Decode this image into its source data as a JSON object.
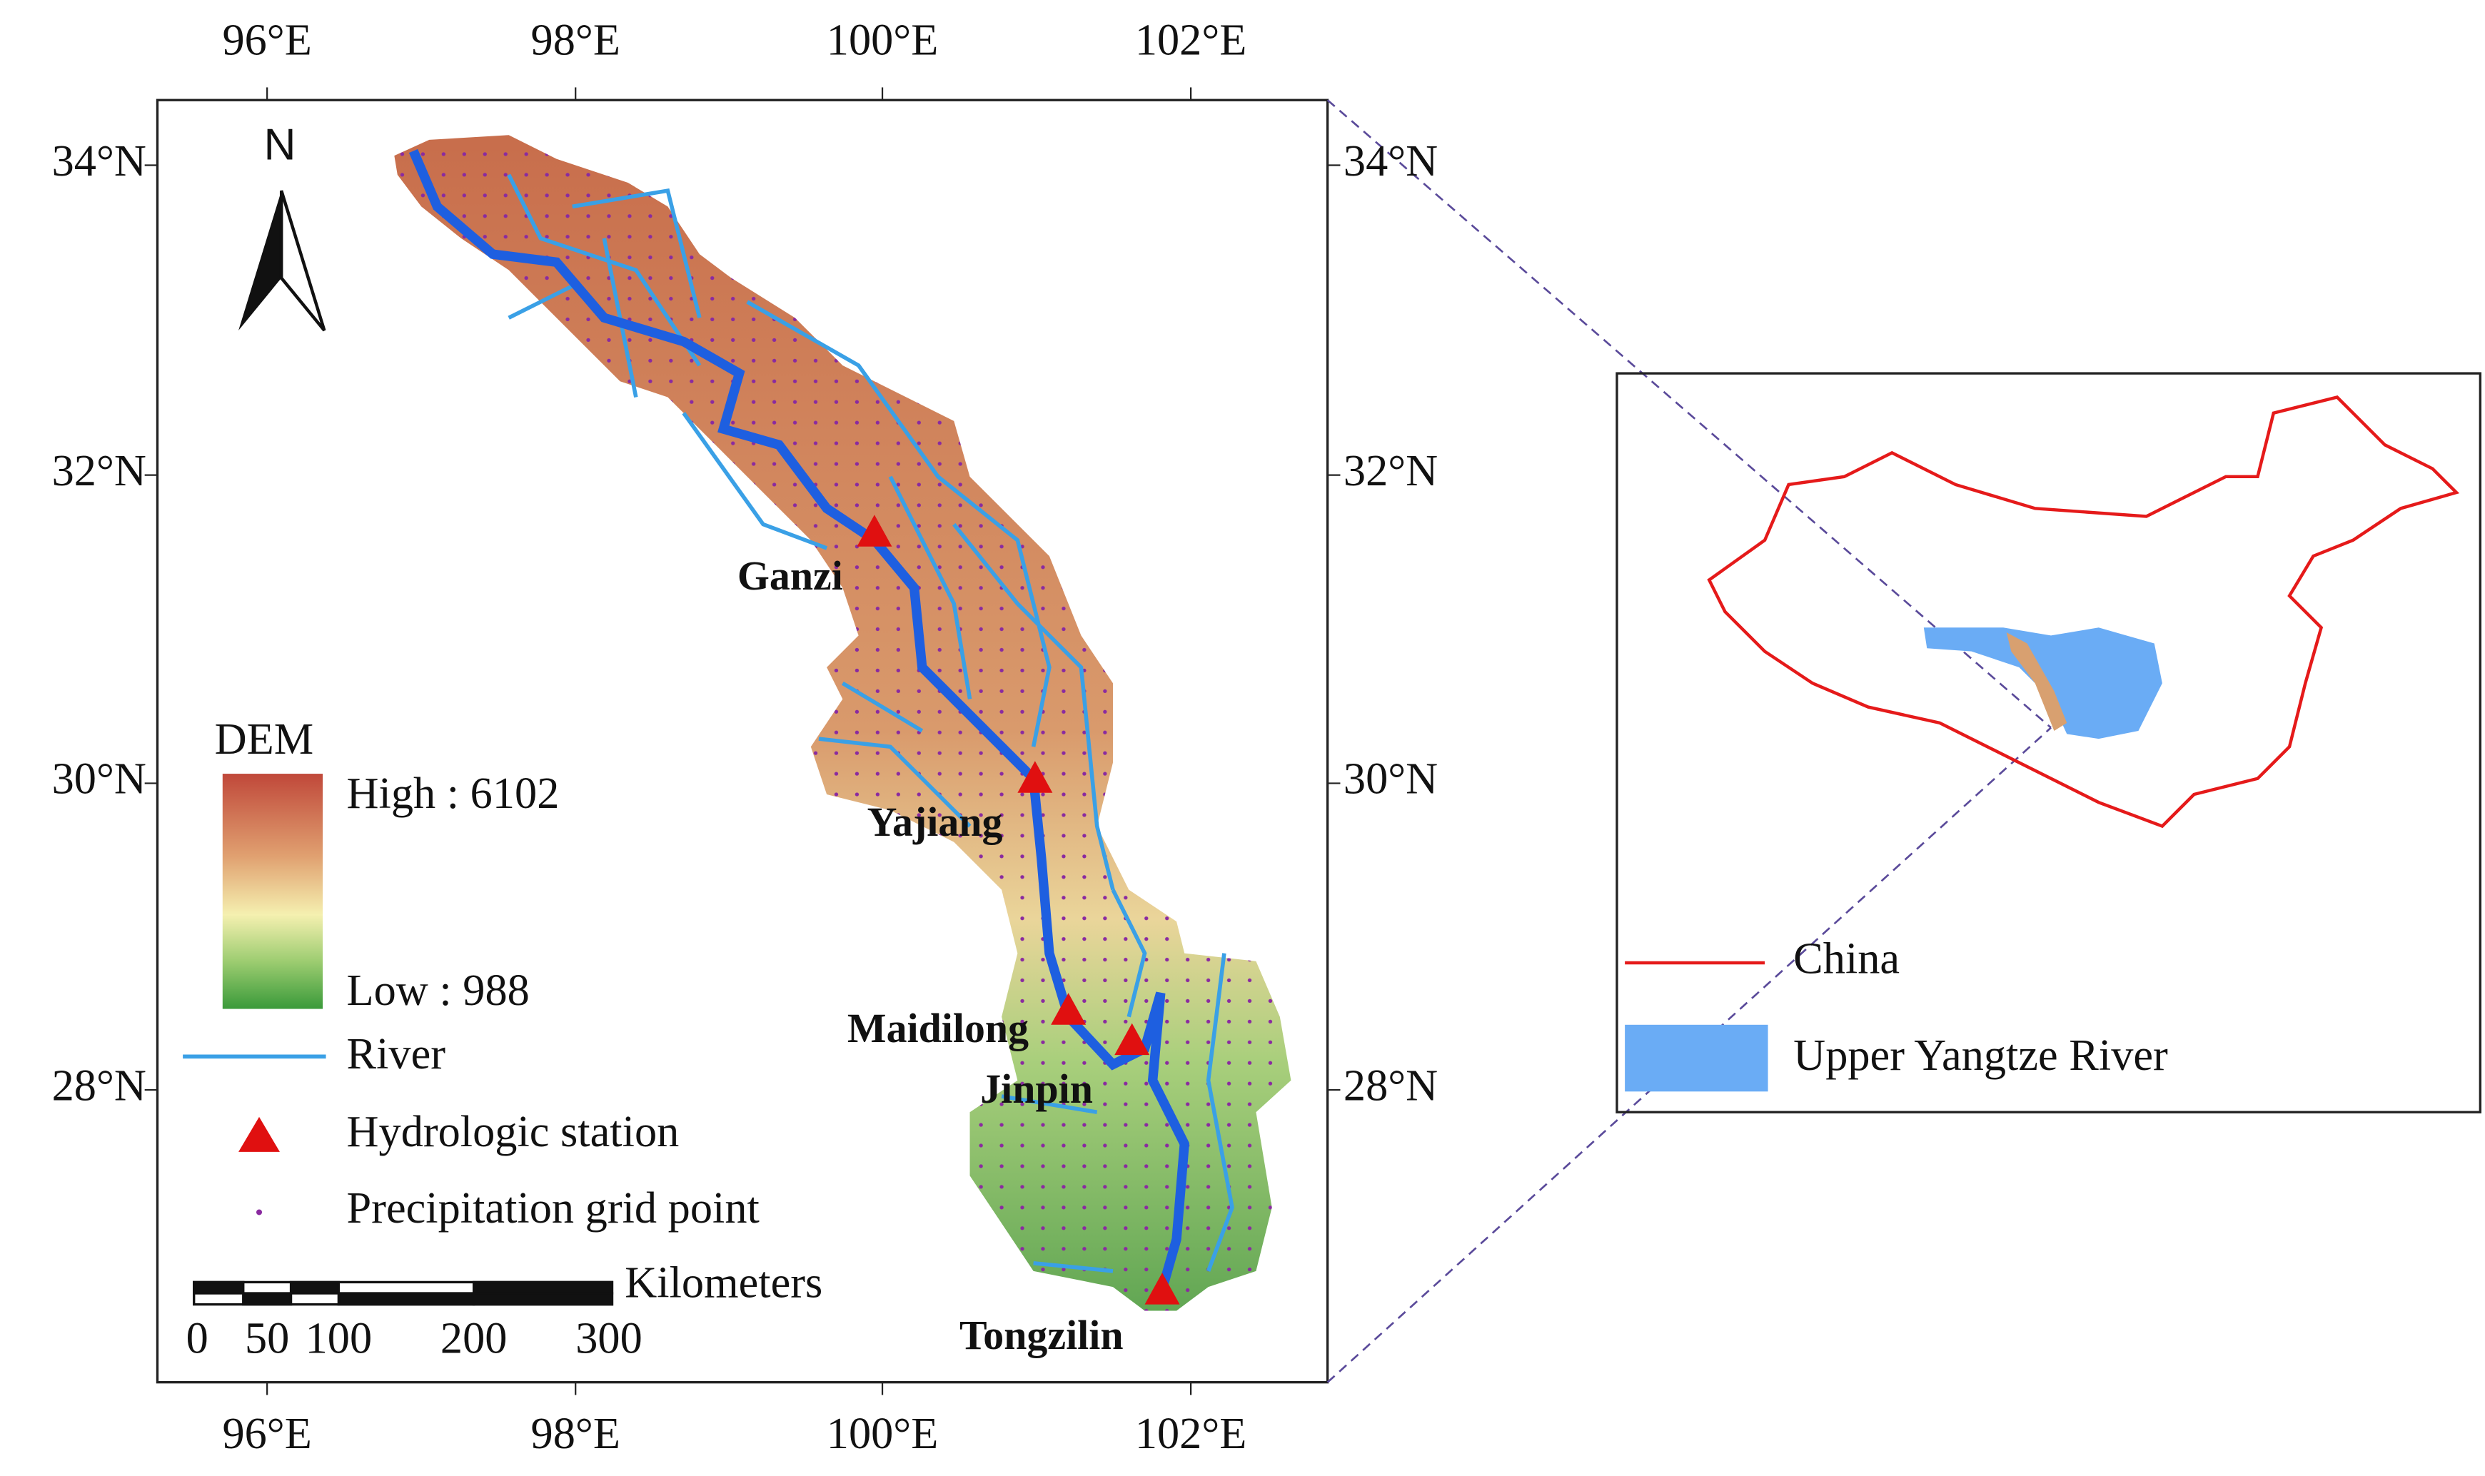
{
  "map": {
    "lon_labels": [
      "96°E",
      "98°E",
      "100°E",
      "102°E"
    ],
    "lat_labels": [
      "34°N",
      "32°N",
      "30°N",
      "28°N"
    ],
    "north": "N",
    "legend": {
      "title": "DEM",
      "high": "High : 6102",
      "low": "Low : 988",
      "river": "River",
      "station": "Hydrologic station",
      "grid": "Precipitation grid point"
    },
    "scale": {
      "unit": "Kilometers",
      "labels": [
        "0",
        "50",
        "100",
        "200",
        "300"
      ]
    },
    "stations": [
      "Ganzi",
      "Yajiang",
      "Maidilong",
      "Jinpin",
      "Tongzilin"
    ]
  },
  "inset": {
    "legend": [
      "China",
      "Upper Yangtze River"
    ]
  }
}
